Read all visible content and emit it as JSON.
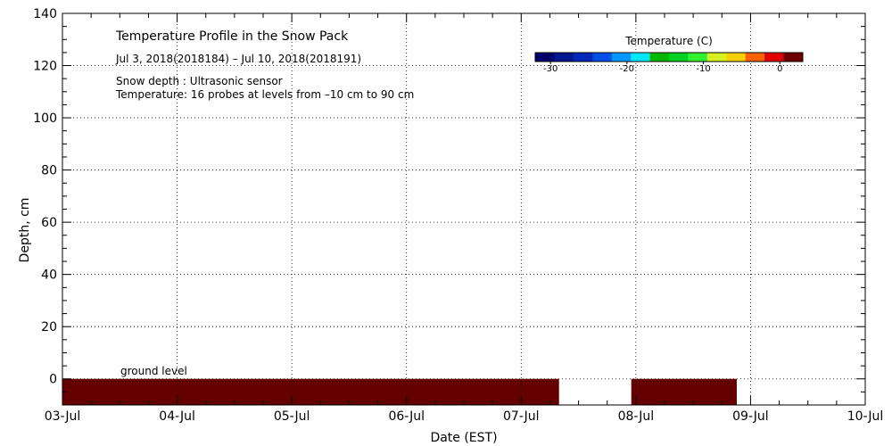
{
  "chart_data": {
    "type": "heatmap",
    "title": "Temperature Profile in the Snow Pack",
    "subtitle": "Jul  3, 2018(2018184) – Jul 10, 2018(2018191)",
    "notes": [
      "Snow depth : Ultrasonic sensor",
      "Temperature: 16 probes at levels from –10 cm to 90 cm"
    ],
    "annotation": "ground level",
    "xlabel": "Date (EST)",
    "ylabel": "Depth, cm",
    "x_ticks": [
      "03-Jul",
      "04-Jul",
      "05-Jul",
      "06-Jul",
      "07-Jul",
      "08-Jul",
      "09-Jul",
      "10-Jul"
    ],
    "xlim_days": [
      0,
      7
    ],
    "ylim": [
      -10,
      140
    ],
    "y_ticks": [
      0,
      20,
      40,
      60,
      80,
      100,
      120,
      140
    ],
    "grid": true,
    "colorbar": {
      "title": "Temperature (C)",
      "min": -32,
      "max": 3,
      "ticks": [
        -30,
        -20,
        -10,
        0
      ],
      "colors": [
        "#00006e",
        "#001890",
        "#0028b8",
        "#0050e8",
        "#0098ff",
        "#00e8f8",
        "#00b800",
        "#00d020",
        "#30f030",
        "#d8f020",
        "#f8d000",
        "#f86000",
        "#e00000",
        "#6e0000"
      ]
    },
    "bands": [
      {
        "x_start_day": 0.0,
        "x_end_day": 4.33,
        "y_bottom": -10,
        "y_top": 0,
        "color": "#640000"
      },
      {
        "x_start_day": 4.96,
        "x_end_day": 5.88,
        "y_bottom": -10,
        "y_top": 0,
        "color": "#640000"
      }
    ]
  }
}
